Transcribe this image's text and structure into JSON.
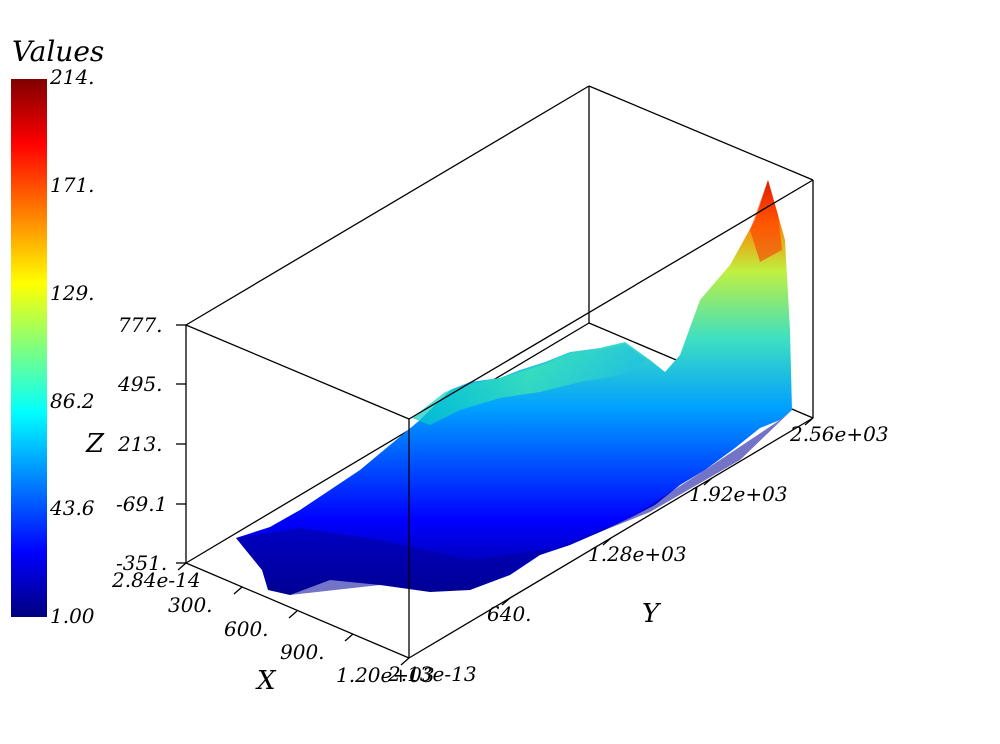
{
  "chart_data": {
    "type": "surface3d",
    "colorbar": {
      "title": "Values",
      "range": [
        1.0,
        214.0
      ],
      "ticks": [
        "214.",
        "171.",
        "129.",
        "86.2",
        "43.6",
        "1.00"
      ],
      "colormap": [
        "#00007f",
        "#0000ff",
        "#00ffff",
        "#ffff00",
        "#ff0000",
        "#7f0000"
      ]
    },
    "axes": {
      "x": {
        "label": "X",
        "ticks": [
          "2.84e-14",
          "300.",
          "600.",
          "900.",
          "1.20e+03"
        ],
        "range": [
          0,
          1200
        ]
      },
      "y": {
        "label": "Y",
        "ticks": [
          "2.13e-13",
          "640.",
          "1.28e+03",
          "1.92e+03",
          "2.56e+03"
        ],
        "range": [
          0,
          2560
        ]
      },
      "z": {
        "label": "Z",
        "ticks": [
          "-351.",
          "-69.1",
          "213.",
          "495.",
          "777."
        ],
        "range": [
          -351,
          777
        ]
      }
    },
    "surface_profile": {
      "description_values_along_y": [
        {
          "y": 0,
          "value": 5
        },
        {
          "y": 256,
          "value": 18
        },
        {
          "y": 512,
          "value": 45
        },
        {
          "y": 768,
          "value": 70
        },
        {
          "y": 1024,
          "value": 78
        },
        {
          "y": 1280,
          "value": 82
        },
        {
          "y": 1536,
          "value": 84
        },
        {
          "y": 1792,
          "value": 80
        },
        {
          "y": 2048,
          "value": 95
        },
        {
          "y": 2304,
          "value": 150
        },
        {
          "y": 2432,
          "value": 214
        },
        {
          "y": 2560,
          "value": 60
        }
      ]
    }
  }
}
